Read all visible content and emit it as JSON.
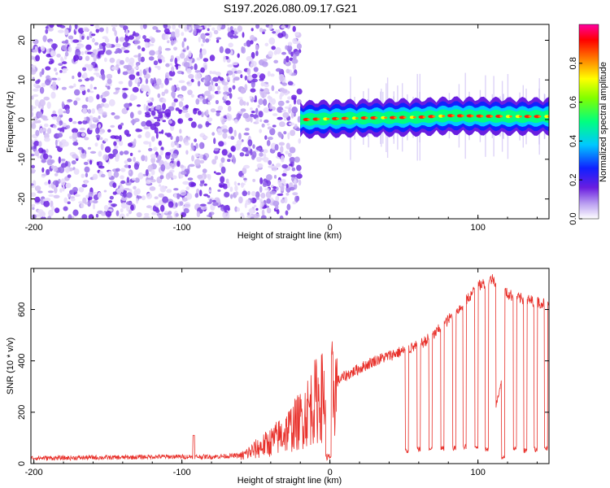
{
  "title": "S197.2026.080.09.17.G21",
  "colors": {
    "signal": "#e8302a",
    "scatter": "#6a1ee0",
    "axis": "#000000"
  },
  "chart_data": [
    {
      "type": "heatmap",
      "xlabel": "Height of straight line (km)",
      "ylabel": "Frequency (Hz)",
      "xlim": [
        -202,
        148
      ],
      "ylim": [
        -25,
        24
      ],
      "x_ticks": [
        -200,
        -100,
        0,
        100
      ],
      "x_tick_labels": [
        "-200",
        "-100",
        "0",
        "100"
      ],
      "y_ticks": [
        -20,
        -10,
        0,
        10,
        20
      ],
      "y_tick_labels": [
        "-20",
        "-10",
        "0",
        "10",
        "20"
      ],
      "noise_region_x": [
        -202,
        -20
      ],
      "ridge_region_x": [
        -20,
        148
      ],
      "ridge_frequency_hz": [
        {
          "x": -20,
          "f": 0.0
        },
        {
          "x": 0,
          "f": 0.2
        },
        {
          "x": 20,
          "f": 0.4
        },
        {
          "x": 40,
          "f": 0.5
        },
        {
          "x": 60,
          "f": 0.6
        },
        {
          "x": 80,
          "f": 1.0
        },
        {
          "x": 100,
          "f": 0.9
        },
        {
          "x": 120,
          "f": 0.8
        },
        {
          "x": 148,
          "f": 0.8
        }
      ],
      "colorbar": {
        "label": "Normalized spectral amplitude",
        "range": [
          0,
          1
        ],
        "ticks": [
          0.0,
          0.2,
          0.4,
          0.6,
          0.8
        ],
        "tick_labels": [
          "0.0",
          "0.2",
          "0.4",
          "0.6",
          "0.8"
        ]
      }
    },
    {
      "type": "line",
      "xlabel": "Height of straight line (km)",
      "ylabel": "SNR (10 * v/v)",
      "xlim": [
        -202,
        148
      ],
      "ylim": [
        0,
        760
      ],
      "x_ticks": [
        -200,
        -100,
        0,
        100
      ],
      "x_tick_labels": [
        "-200",
        "-100",
        "0",
        "100"
      ],
      "y_ticks": [
        0,
        200,
        400,
        600
      ],
      "y_tick_labels": [
        "0",
        "200",
        "400",
        "600"
      ],
      "series": [
        {
          "name": "SNR",
          "x": [
            -202,
            -180,
            -160,
            -140,
            -120,
            -100,
            -80,
            -60,
            -50,
            -40,
            -30,
            -20,
            -10,
            0,
            10,
            20,
            30,
            40,
            50,
            60,
            70,
            80,
            90,
            100,
            110,
            120,
            130,
            140,
            148
          ],
          "y": [
            20,
            20,
            22,
            22,
            25,
            25,
            25,
            30,
            60,
            90,
            130,
            180,
            260,
            300,
            340,
            370,
            400,
            420,
            440,
            460,
            500,
            560,
            620,
            690,
            720,
            660,
            640,
            630,
            620
          ]
        }
      ],
      "dropouts": [
        {
          "x": 51,
          "x2": 53,
          "low": 50
        },
        {
          "x": 59,
          "x2": 61,
          "low": 55
        },
        {
          "x": 67,
          "x2": 69,
          "low": 55
        },
        {
          "x": 75,
          "x2": 77,
          "low": 60
        },
        {
          "x": 83,
          "x2": 85,
          "low": 60
        },
        {
          "x": 90,
          "x2": 92,
          "low": 65
        },
        {
          "x": 98,
          "x2": 100,
          "low": 65
        },
        {
          "x": 105,
          "x2": 107,
          "low": 55
        },
        {
          "x": 116,
          "x2": 118,
          "low": 20
        },
        {
          "x": 124,
          "x2": 126,
          "low": 60
        },
        {
          "x": 131,
          "x2": 133,
          "low": 50
        },
        {
          "x": 138,
          "x2": 140,
          "low": 55
        },
        {
          "x": 145,
          "x2": 147,
          "low": 60
        }
      ]
    }
  ]
}
